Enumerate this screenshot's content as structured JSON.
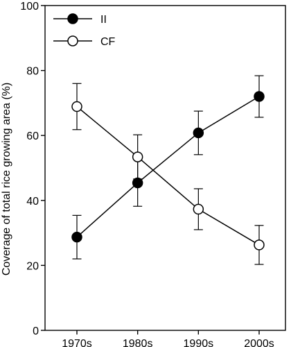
{
  "chart_data": {
    "type": "line",
    "title": "",
    "xlabel": "",
    "ylabel": "Coverage of total rice growing area (%)",
    "categories": [
      "1970s",
      "1980s",
      "1990s",
      "2000s"
    ],
    "ylim": [
      0,
      100
    ],
    "yticks": [
      0,
      20,
      40,
      60,
      80,
      100
    ],
    "grid": false,
    "legend_position": "top-left",
    "series": [
      {
        "name": "II",
        "marker": "filled-circle",
        "values": [
          28.7,
          45.4,
          60.8,
          72.0
        ],
        "error": [
          6.7,
          7.2,
          6.7,
          6.4
        ]
      },
      {
        "name": "CF",
        "marker": "open-circle",
        "values": [
          68.9,
          53.4,
          37.3,
          26.3
        ],
        "error": [
          7.1,
          6.8,
          6.3,
          6.0
        ]
      }
    ]
  }
}
